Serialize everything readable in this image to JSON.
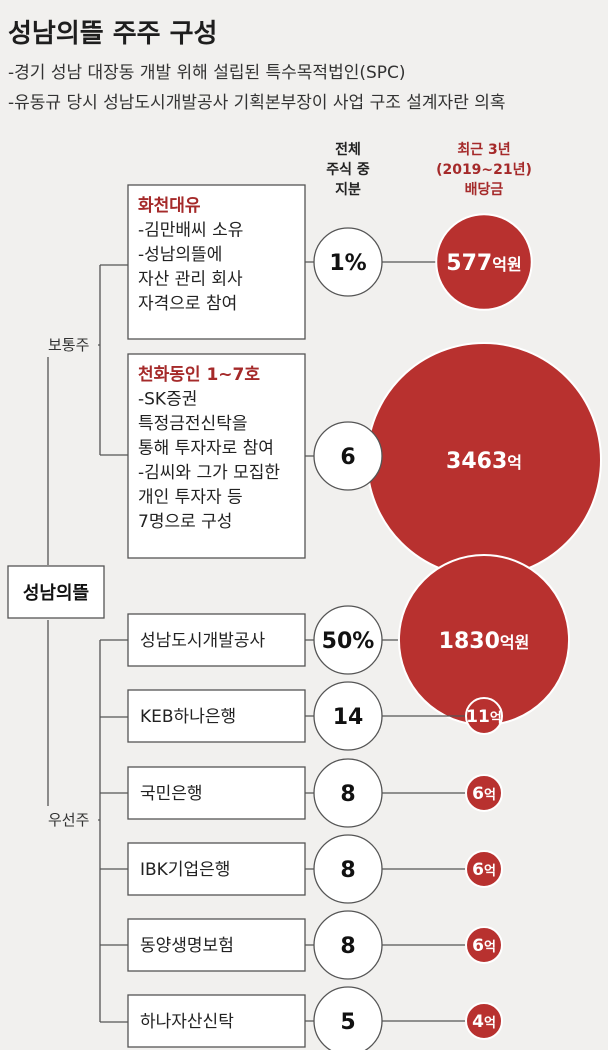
{
  "title": "성남의뜰 주주 구성",
  "subtitle_lines": [
    "-경기 성남 대장동 개발 위해 설립된 특수목적법인(SPC)",
    "-유동규 당시 성남도시개발공사 기획본부장이 사업 구조 설계자란 의혹"
  ],
  "column_headers": {
    "share": [
      "전체",
      "주식 중",
      "지분"
    ],
    "dividend": [
      "최근 3년",
      "(2019~21년)",
      "배당금"
    ]
  },
  "root_label": "성남의뜰",
  "groups": {
    "common": "보통주",
    "preferred": "우선주"
  },
  "colors": {
    "accent_red": "#b8312f",
    "head_red": "#a52a2a",
    "background": "#f1f0ee"
  },
  "chart_data": {
    "type": "bubble",
    "title": "성남의뜰 주주 구성",
    "share_unit": "%",
    "dividend_unit": "억원",
    "shareholders": [
      {
        "group": "보통주",
        "name": "화천대유",
        "details": [
          "-김만배씨 소유",
          "-성남의뜰에",
          "자산 관리 회사",
          "자격으로 참여"
        ],
        "share_label": "1%",
        "share": 1,
        "dividend": 577,
        "dividend_num": "577",
        "dividend_unit": "억원"
      },
      {
        "group": "보통주",
        "name": "천화동인 1~7호",
        "details": [
          "-SK증권",
          "특정금전신탁을",
          "통해 투자자로 참여",
          "-김씨와 그가 모집한",
          "개인 투자자 등",
          "7명으로 구성"
        ],
        "share_label": "6",
        "share": 6,
        "dividend": 3463,
        "dividend_num": "3463",
        "dividend_unit": "억"
      },
      {
        "group": "우선주",
        "name": "성남도시개발공사",
        "share_label": "50%",
        "share": 50,
        "dividend": 1830,
        "dividend_num": "1830",
        "dividend_unit": "억원"
      },
      {
        "group": "우선주",
        "name": "KEB하나은행",
        "share_label": "14",
        "share": 14,
        "dividend": 11,
        "dividend_num": "11",
        "dividend_unit": "억"
      },
      {
        "group": "우선주",
        "name": "국민은행",
        "share_label": "8",
        "share": 8,
        "dividend": 6,
        "dividend_num": "6",
        "dividend_unit": "억"
      },
      {
        "group": "우선주",
        "name": "IBK기업은행",
        "share_label": "8",
        "share": 8,
        "dividend": 6,
        "dividend_num": "6",
        "dividend_unit": "억"
      },
      {
        "group": "우선주",
        "name": "동양생명보험",
        "share_label": "8",
        "share": 8,
        "dividend": 6,
        "dividend_num": "6",
        "dividend_unit": "억"
      },
      {
        "group": "우선주",
        "name": "하나자산신탁",
        "share_label": "5",
        "share": 5,
        "dividend": 4,
        "dividend_num": "4",
        "dividend_unit": "억"
      }
    ]
  }
}
